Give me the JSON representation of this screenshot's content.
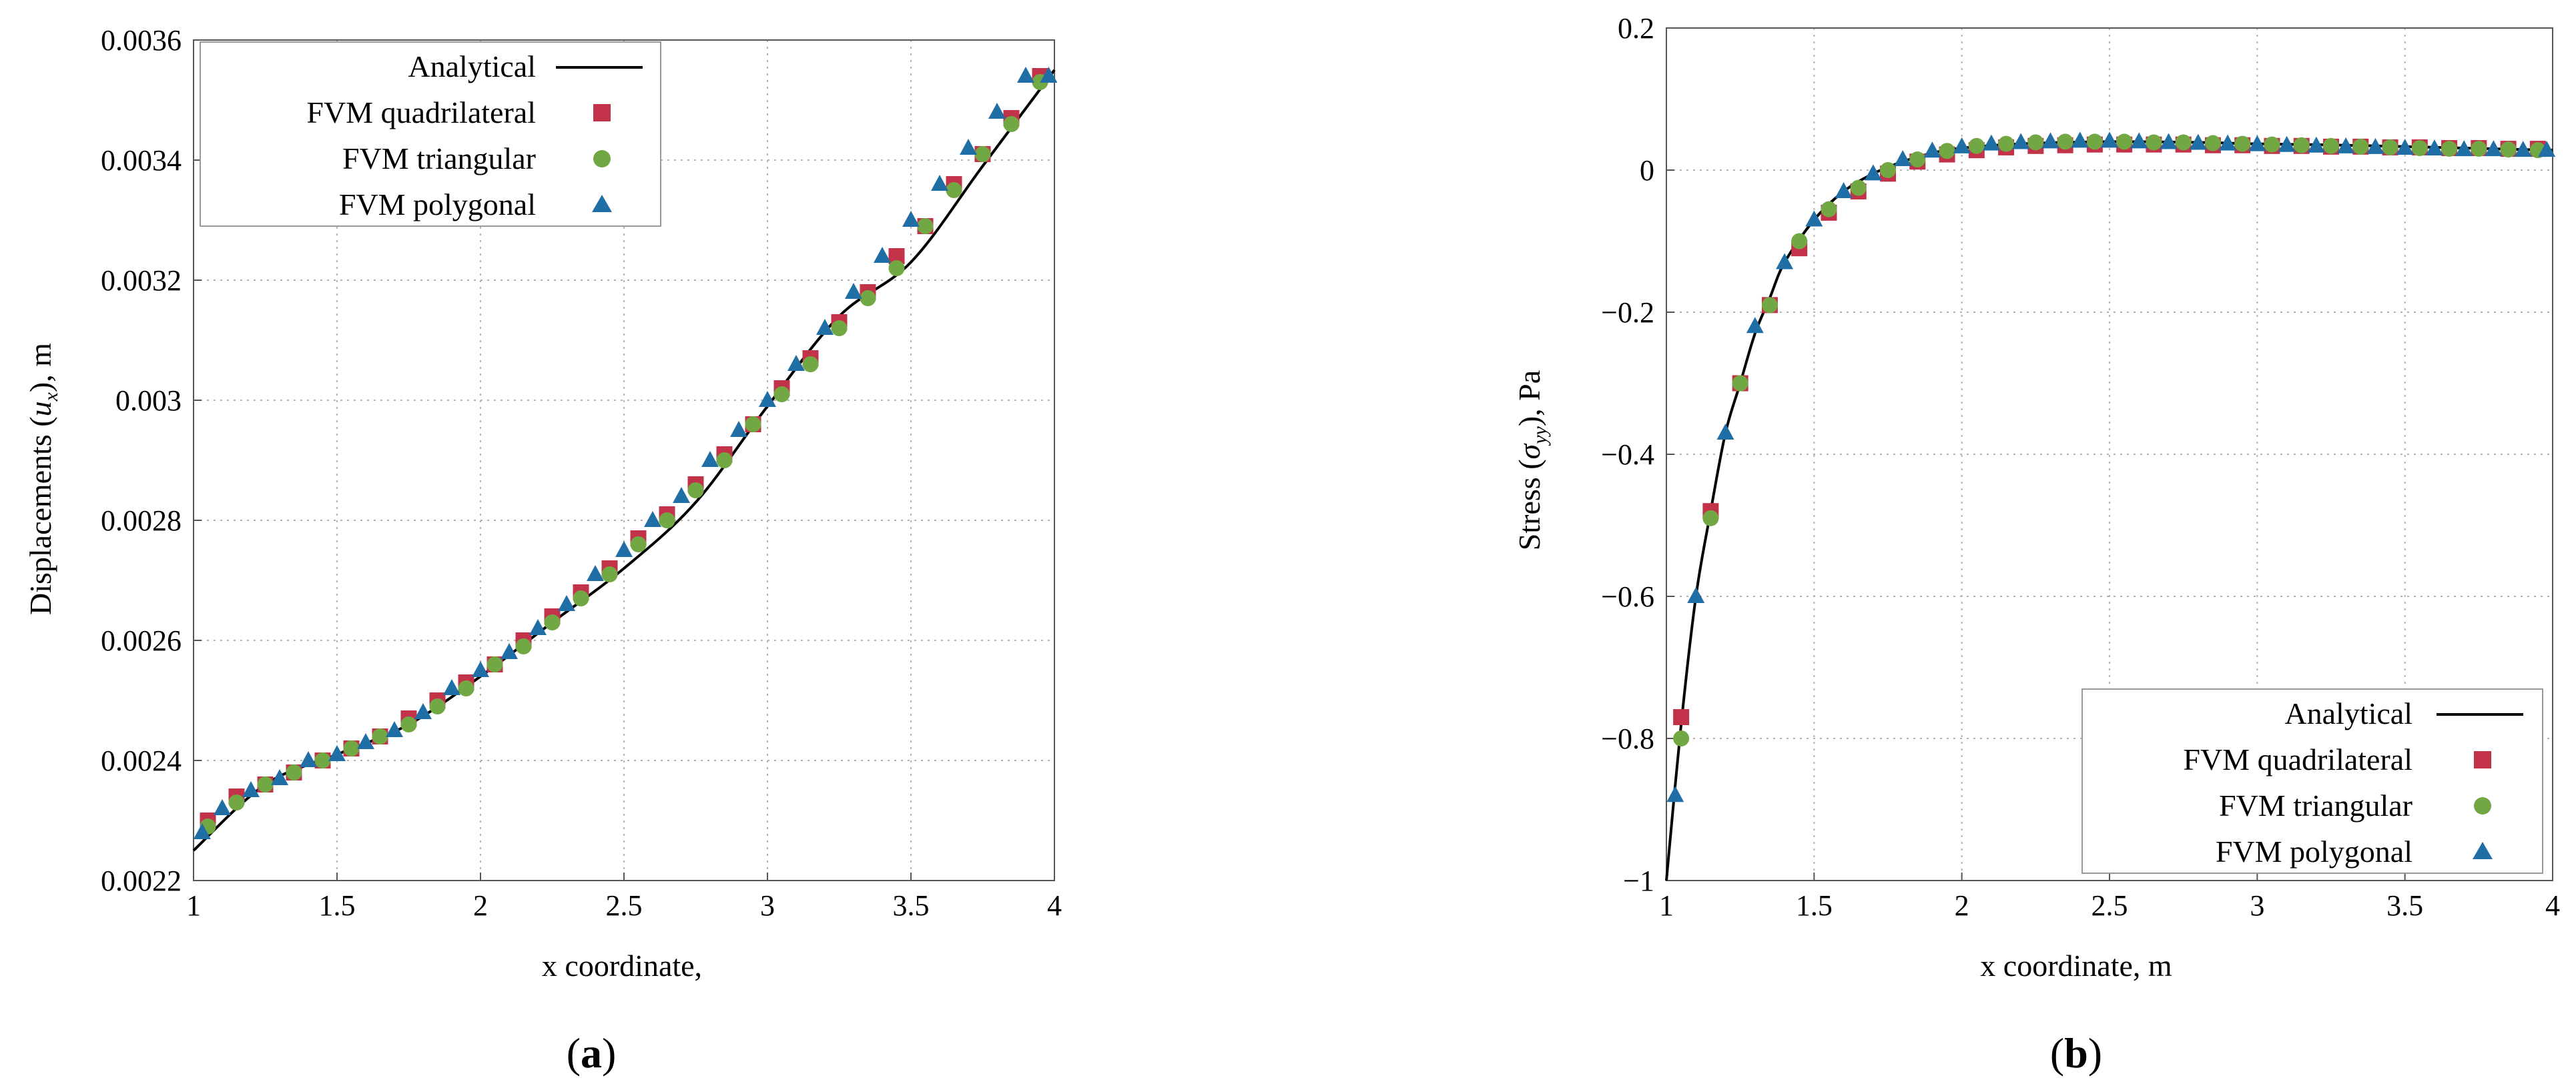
{
  "colors": {
    "analytical": "#000000",
    "quadrilateral": "#c2334a",
    "triangular": "#72a843",
    "polygonal": "#1f6fa6",
    "grid": "#b3b3b3"
  },
  "chart_data": [
    {
      "type": "scatter",
      "panel_label": "a",
      "xlabel": "x coordinate,",
      "ylabel_parts": [
        "Displacements (",
        "u",
        "x",
        "), m"
      ],
      "xlim": [
        1,
        4
      ],
      "ylim": [
        0.0022,
        0.0036
      ],
      "xticks": [
        1,
        1.5,
        2,
        2.5,
        3,
        3.5,
        4
      ],
      "xtick_labels": [
        "1",
        "1.5",
        "2",
        "2.5",
        "3",
        "3.5",
        "4"
      ],
      "yticks": [
        0.0022,
        0.0024,
        0.0026,
        0.0028,
        0.003,
        0.0032,
        0.0034,
        0.0036
      ],
      "ytick_labels": [
        "0.0022",
        "0.0024",
        "0.0026",
        "0.0028",
        "0.003",
        "0.0032",
        "0.0034",
        "0.0036"
      ],
      "grid": true,
      "legend_position": "top-left",
      "series": [
        {
          "name": "Analytical",
          "kind": "line",
          "color_key": "analytical",
          "x": [
            1.0,
            1.25,
            1.5,
            1.75,
            2.0,
            2.25,
            2.5,
            2.75,
            3.0,
            3.25,
            3.5,
            3.75,
            4.0
          ],
          "y": [
            0.00225,
            0.00236,
            0.00241,
            0.00246,
            0.00254,
            0.00263,
            0.00272,
            0.00283,
            0.00299,
            0.00314,
            0.00323,
            0.00339,
            0.00355
          ]
        },
        {
          "name": "FVM quadrilateral",
          "kind": "square",
          "color_key": "quadrilateral",
          "x": [
            1.05,
            1.15,
            1.25,
            1.35,
            1.45,
            1.55,
            1.65,
            1.75,
            1.85,
            1.95,
            2.05,
            2.15,
            2.25,
            2.35,
            2.45,
            2.55,
            2.65,
            2.75,
            2.85,
            2.95,
            3.05,
            3.15,
            3.25,
            3.35,
            3.45,
            3.55,
            3.65,
            3.75,
            3.85,
            3.95
          ],
          "y": [
            0.0023,
            0.00234,
            0.00236,
            0.00238,
            0.0024,
            0.00242,
            0.00244,
            0.00247,
            0.0025,
            0.00253,
            0.00256,
            0.0026,
            0.00264,
            0.00268,
            0.00272,
            0.00277,
            0.00281,
            0.00286,
            0.00291,
            0.00296,
            0.00302,
            0.00307,
            0.00313,
            0.00318,
            0.00324,
            0.00329,
            0.00336,
            0.00341,
            0.00347,
            0.00354
          ]
        },
        {
          "name": "FVM triangular",
          "kind": "circle",
          "color_key": "triangular",
          "x": [
            1.05,
            1.15,
            1.25,
            1.35,
            1.45,
            1.55,
            1.65,
            1.75,
            1.85,
            1.95,
            2.05,
            2.15,
            2.25,
            2.35,
            2.45,
            2.55,
            2.65,
            2.75,
            2.85,
            2.95,
            3.05,
            3.15,
            3.25,
            3.35,
            3.45,
            3.55,
            3.65,
            3.75,
            3.85,
            3.95
          ],
          "y": [
            0.00229,
            0.00233,
            0.00236,
            0.00238,
            0.0024,
            0.00242,
            0.00244,
            0.00246,
            0.00249,
            0.00252,
            0.00256,
            0.00259,
            0.00263,
            0.00267,
            0.00271,
            0.00276,
            0.0028,
            0.00285,
            0.0029,
            0.00296,
            0.00301,
            0.00306,
            0.00312,
            0.00317,
            0.00322,
            0.00329,
            0.00335,
            0.00341,
            0.00346,
            0.00353
          ]
        },
        {
          "name": "FVM polygonal",
          "kind": "triangle",
          "color_key": "polygonal",
          "x": [
            1.03,
            1.1,
            1.2,
            1.3,
            1.4,
            1.5,
            1.6,
            1.7,
            1.8,
            1.9,
            2.0,
            2.1,
            2.2,
            2.3,
            2.4,
            2.5,
            2.6,
            2.7,
            2.8,
            2.9,
            3.0,
            3.1,
            3.2,
            3.3,
            3.4,
            3.5,
            3.6,
            3.7,
            3.8,
            3.9,
            3.98
          ],
          "y": [
            0.00228,
            0.00232,
            0.00235,
            0.00237,
            0.0024,
            0.00241,
            0.00243,
            0.00245,
            0.00248,
            0.00252,
            0.00255,
            0.00258,
            0.00262,
            0.00266,
            0.00271,
            0.00275,
            0.0028,
            0.00284,
            0.0029,
            0.00295,
            0.003,
            0.00306,
            0.00312,
            0.00318,
            0.00324,
            0.0033,
            0.00336,
            0.00342,
            0.00348,
            0.00354,
            0.00354
          ]
        }
      ]
    },
    {
      "type": "scatter",
      "panel_label": "b",
      "xlabel": "x coordinate, m",
      "ylabel_parts": [
        "Stress (",
        "σ",
        "yy",
        "), Pa"
      ],
      "xlim": [
        1,
        4
      ],
      "ylim": [
        -1,
        0.2
      ],
      "xticks": [
        1,
        1.5,
        2,
        2.5,
        3,
        3.5,
        4
      ],
      "xtick_labels": [
        "1",
        "1.5",
        "2",
        "2.5",
        "3",
        "3.5",
        "4"
      ],
      "yticks": [
        -1,
        -0.8,
        -0.6,
        -0.4,
        -0.2,
        0,
        0.2
      ],
      "ytick_labels": [
        "−1",
        "−0.8",
        "−0.6",
        "−0.4",
        "−0.2",
        "0",
        "0.2"
      ],
      "grid": true,
      "legend_position": "bottom-right",
      "series": [
        {
          "name": "Analytical",
          "kind": "line",
          "color_key": "analytical",
          "x": [
            1.0,
            1.05,
            1.1,
            1.15,
            1.2,
            1.25,
            1.3,
            1.35,
            1.4,
            1.5,
            1.6,
            1.7,
            1.8,
            1.9,
            2.0,
            2.2,
            2.5,
            2.8,
            3.0,
            3.3,
            3.6,
            4.0
          ],
          "y": [
            -1.0,
            -0.78,
            -0.6,
            -0.48,
            -0.37,
            -0.3,
            -0.23,
            -0.18,
            -0.13,
            -0.07,
            -0.03,
            -0.005,
            0.012,
            0.024,
            0.031,
            0.037,
            0.04,
            0.039,
            0.037,
            0.035,
            0.032,
            0.028
          ]
        },
        {
          "name": "FVM quadrilateral",
          "kind": "square",
          "color_key": "quadrilateral",
          "x": [
            1.05,
            1.15,
            1.25,
            1.35,
            1.45,
            1.55,
            1.65,
            1.75,
            1.85,
            1.95,
            2.05,
            2.15,
            2.25,
            2.35,
            2.45,
            2.55,
            2.65,
            2.75,
            2.85,
            2.95,
            3.05,
            3.15,
            3.25,
            3.35,
            3.45,
            3.55,
            3.65,
            3.75,
            3.85,
            3.95
          ],
          "y": [
            -0.77,
            -0.48,
            -0.3,
            -0.19,
            -0.11,
            -0.06,
            -0.03,
            -0.005,
            0.012,
            0.022,
            0.028,
            0.032,
            0.034,
            0.035,
            0.036,
            0.036,
            0.036,
            0.036,
            0.035,
            0.035,
            0.034,
            0.034,
            0.033,
            0.033,
            0.032,
            0.032,
            0.031,
            0.031,
            0.03,
            0.03
          ]
        },
        {
          "name": "FVM triangular",
          "kind": "circle",
          "color_key": "triangular",
          "x": [
            1.05,
            1.15,
            1.25,
            1.35,
            1.45,
            1.55,
            1.65,
            1.75,
            1.85,
            1.95,
            2.05,
            2.15,
            2.25,
            2.35,
            2.45,
            2.55,
            2.65,
            2.75,
            2.85,
            2.95,
            3.05,
            3.15,
            3.25,
            3.35,
            3.45,
            3.55,
            3.65,
            3.75,
            3.85,
            3.95
          ],
          "y": [
            -0.8,
            -0.49,
            -0.3,
            -0.19,
            -0.1,
            -0.055,
            -0.025,
            0.0,
            0.015,
            0.027,
            0.034,
            0.037,
            0.039,
            0.04,
            0.04,
            0.04,
            0.039,
            0.039,
            0.038,
            0.037,
            0.036,
            0.035,
            0.034,
            0.033,
            0.032,
            0.031,
            0.03,
            0.03,
            0.029,
            0.028
          ]
        },
        {
          "name": "FVM polygonal",
          "kind": "triangle",
          "color_key": "polygonal",
          "x": [
            1.03,
            1.1,
            1.2,
            1.3,
            1.4,
            1.5,
            1.6,
            1.7,
            1.8,
            1.9,
            2.0,
            2.1,
            2.2,
            2.3,
            2.4,
            2.5,
            2.6,
            2.7,
            2.8,
            2.9,
            3.0,
            3.1,
            3.2,
            3.3,
            3.4,
            3.5,
            3.6,
            3.7,
            3.8,
            3.9,
            3.98
          ],
          "y": [
            -0.88,
            -0.6,
            -0.37,
            -0.22,
            -0.13,
            -0.07,
            -0.03,
            -0.005,
            0.015,
            0.027,
            0.033,
            0.037,
            0.039,
            0.04,
            0.041,
            0.041,
            0.04,
            0.039,
            0.038,
            0.037,
            0.036,
            0.035,
            0.034,
            0.033,
            0.032,
            0.031,
            0.03,
            0.029,
            0.029,
            0.028,
            0.028
          ]
        }
      ]
    }
  ]
}
